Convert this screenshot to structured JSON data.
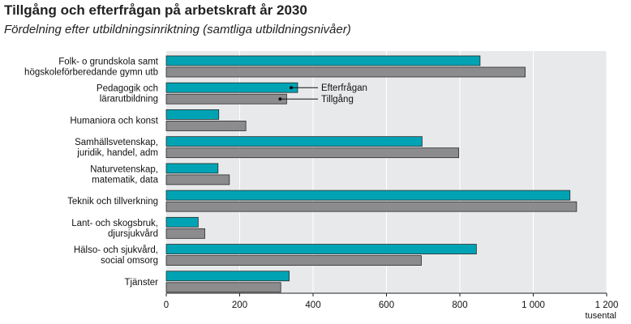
{
  "header": {
    "title": "Tillgång och efterfrågan på arbetskraft år 2030",
    "subtitle": "Fördelning efter utbildningsinriktning (samtliga utbildningsnivåer)"
  },
  "colors": {
    "efterfragan": "#00a3b4",
    "tillgang": "#8c8c8e",
    "plot_background": "#e8e9ea",
    "gridline": "#ffffff"
  },
  "chart_data": {
    "type": "bar",
    "orientation": "horizontal",
    "title": "Tillgång och efterfrågan på arbetskraft år 2030",
    "subtitle": "Fördelning efter utbildningsinriktning (samtliga utbildningsnivåer)",
    "categories": [
      [
        "Folk- o grundskola samt",
        "högskoleförberedande gymn utb"
      ],
      [
        "Pedagogik och",
        "lärarutbildning"
      ],
      [
        "Humaniora och konst"
      ],
      [
        "Samhällsvetenskap,",
        "juridik, handel, adm"
      ],
      [
        "Naturvetenskap,",
        "matematik, data"
      ],
      [
        "Teknik och tillverkning"
      ],
      [
        "Lant- och skogsbruk,",
        "djursjukvård"
      ],
      [
        "Hälso- och sjukvård,",
        "social omsorg"
      ],
      [
        "Tjänster"
      ]
    ],
    "series": [
      {
        "name": "Efterfrågan",
        "values": [
          855,
          358,
          143,
          697,
          141,
          1100,
          87,
          845,
          335
        ]
      },
      {
        "name": "Tillgång",
        "values": [
          978,
          328,
          217,
          797,
          172,
          1118,
          105,
          695,
          312
        ]
      }
    ],
    "x_ticks": [
      "0",
      "200",
      "400",
      "600",
      "800",
      "1 000",
      "1 200"
    ],
    "x_tick_values": [
      0,
      200,
      400,
      600,
      800,
      1000,
      1200
    ],
    "xlim": [
      0,
      1200
    ],
    "xunit": "tusental",
    "grid": true,
    "legend": "inline annotations on second category"
  }
}
